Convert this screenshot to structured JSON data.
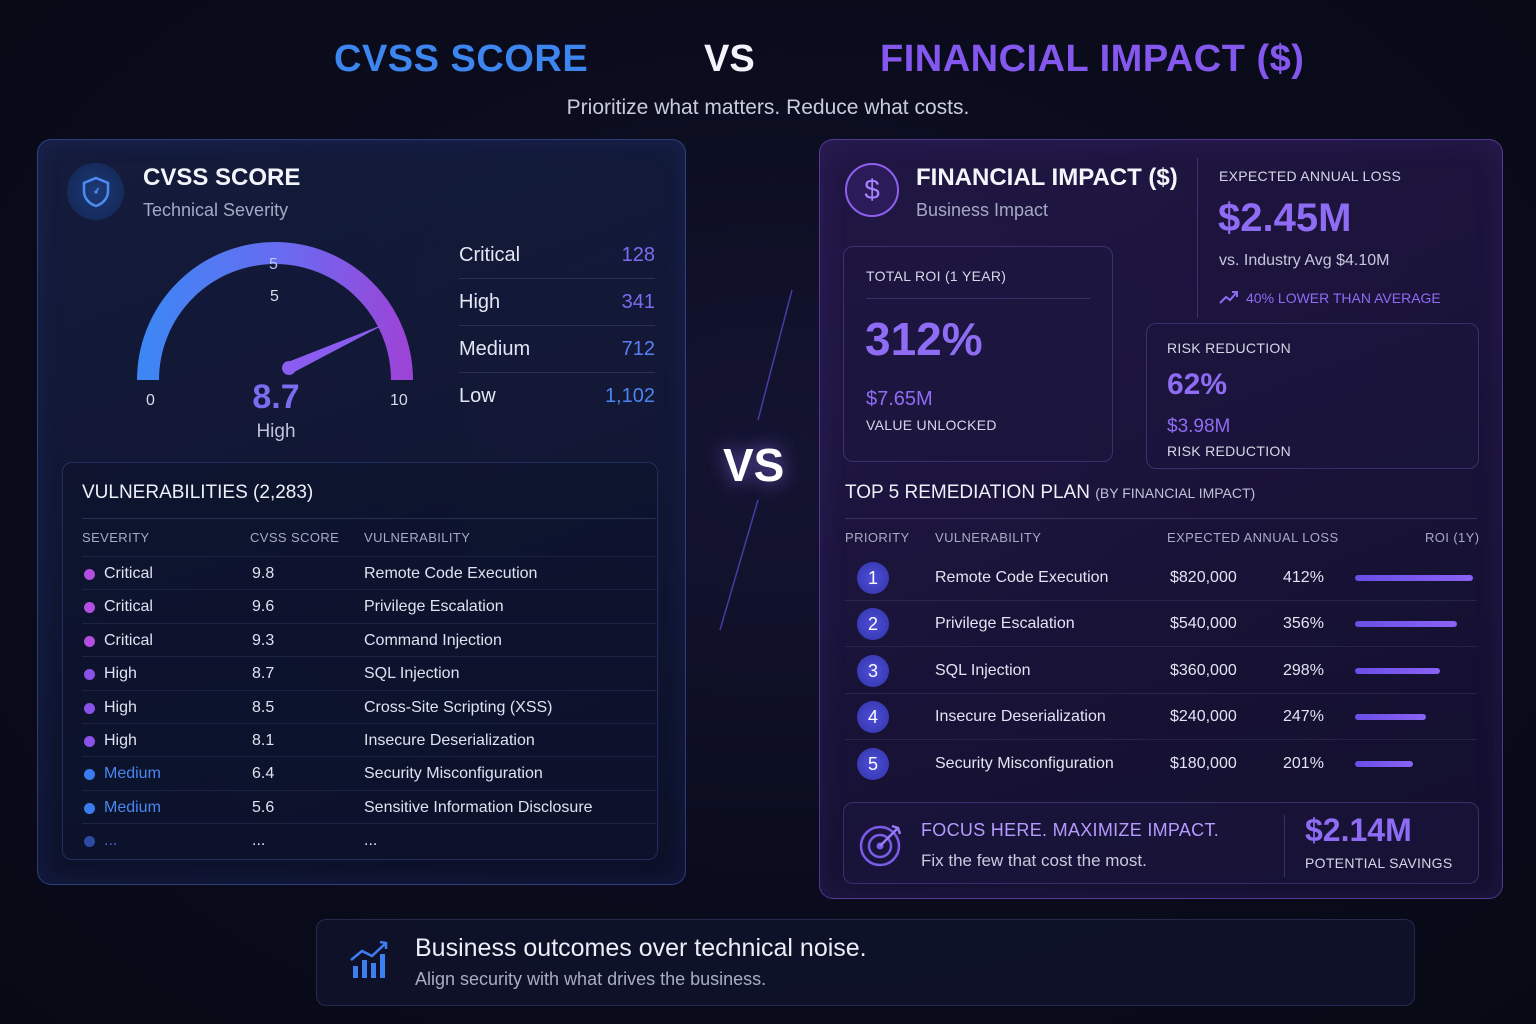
{
  "header": {
    "left_title": "CVSS SCORE",
    "vs": "VS",
    "right_title": "FINANCIAL IMPACT ($)",
    "subtitle": "Prioritize what matters. Reduce what costs."
  },
  "cvss": {
    "title": "CVSS SCORE",
    "subtitle": "Technical Severity",
    "icon": "shield-icon",
    "gauge": {
      "min_label": "0",
      "mid_label": "5",
      "max_label": "10",
      "score": "8.7",
      "score_value": 8.7,
      "level": "High"
    },
    "severity_counts": [
      {
        "label": "Critical",
        "count": "128"
      },
      {
        "label": "High",
        "count": "341"
      },
      {
        "label": "Medium",
        "count": "712"
      },
      {
        "label": "Low",
        "count": "1,102"
      }
    ],
    "vulns": {
      "title": "VULNERABILITIES (2,283)",
      "headers": [
        "SEVERITY",
        "CVSS SCORE",
        "VULNERABILITY"
      ],
      "rows": [
        {
          "severity": "Critical",
          "score": "9.8",
          "name": "Remote Code Execution",
          "color": "#b24fe0"
        },
        {
          "severity": "Critical",
          "score": "9.6",
          "name": "Privilege Escalation",
          "color": "#b24fe0"
        },
        {
          "severity": "Critical",
          "score": "9.3",
          "name": "Command Injection",
          "color": "#b24fe0"
        },
        {
          "severity": "High",
          "score": "8.7",
          "name": "SQL Injection",
          "color": "#8a52e8"
        },
        {
          "severity": "High",
          "score": "8.5",
          "name": "Cross-Site Scripting (XSS)",
          "color": "#8a52e8"
        },
        {
          "severity": "High",
          "score": "8.1",
          "name": "Insecure Deserialization",
          "color": "#8a52e8"
        },
        {
          "severity": "Medium",
          "score": "6.4",
          "name": "Security Misconfiguration",
          "color": "#3a7cf0"
        },
        {
          "severity": "Medium",
          "score": "5.6",
          "name": "Sensitive Information Disclosure",
          "color": "#3a7cf0"
        },
        {
          "severity": "...",
          "score": "...",
          "name": "...",
          "color": "#2b4aa0"
        }
      ]
    }
  },
  "center_vs": "VS",
  "financial": {
    "title": "FINANCIAL IMPACT ($)",
    "subtitle": "Business Impact",
    "icon": "dollar-icon",
    "expected_loss": {
      "label": "EXPECTED ANNUAL LOSS",
      "value": "$2.45M",
      "comparison": "vs. Industry Avg $4.10M",
      "trend": "40% LOWER THAN AVERAGE"
    },
    "roi": {
      "label": "TOTAL ROI (1 YEAR)",
      "value": "312%",
      "amount": "$7.65M",
      "amount_label": "VALUE UNLOCKED"
    },
    "risk": {
      "label": "RISK REDUCTION",
      "value": "62%",
      "amount": "$3.98M",
      "amount_label": "RISK REDUCTION"
    },
    "plan": {
      "title": "TOP 5 REMEDIATION PLAN",
      "title_note": "(BY FINANCIAL IMPACT)",
      "headers": [
        "PRIORITY",
        "VULNERABILITY",
        "EXPECTED ANNUAL LOSS",
        "ROI (1Y)"
      ],
      "rows": [
        {
          "priority": "1",
          "name": "Remote Code Execution",
          "loss": "$820,000",
          "roi": "412%",
          "roi_value": 412
        },
        {
          "priority": "2",
          "name": "Privilege Escalation",
          "loss": "$540,000",
          "roi": "356%",
          "roi_value": 356
        },
        {
          "priority": "3",
          "name": "SQL Injection",
          "loss": "$360,000",
          "roi": "298%",
          "roi_value": 298
        },
        {
          "priority": "4",
          "name": "Insecure Deserialization",
          "loss": "$240,000",
          "roi": "247%",
          "roi_value": 247
        },
        {
          "priority": "5",
          "name": "Security Misconfiguration",
          "loss": "$180,000",
          "roi": "201%",
          "roi_value": 201
        }
      ]
    },
    "focus": {
      "title": "FOCUS HERE. MAXIMIZE IMPACT.",
      "text": "Fix the few that cost the most.",
      "savings": "$2.14M",
      "savings_label": "POTENTIAL SAVINGS"
    }
  },
  "footer": {
    "title": "Business outcomes over technical noise.",
    "text": "Align security with what drives the business."
  },
  "colors": {
    "cvss_blue": "#3d86f0",
    "financial_purple": "#8458ee",
    "accent_violet": "#7b6cf0"
  }
}
